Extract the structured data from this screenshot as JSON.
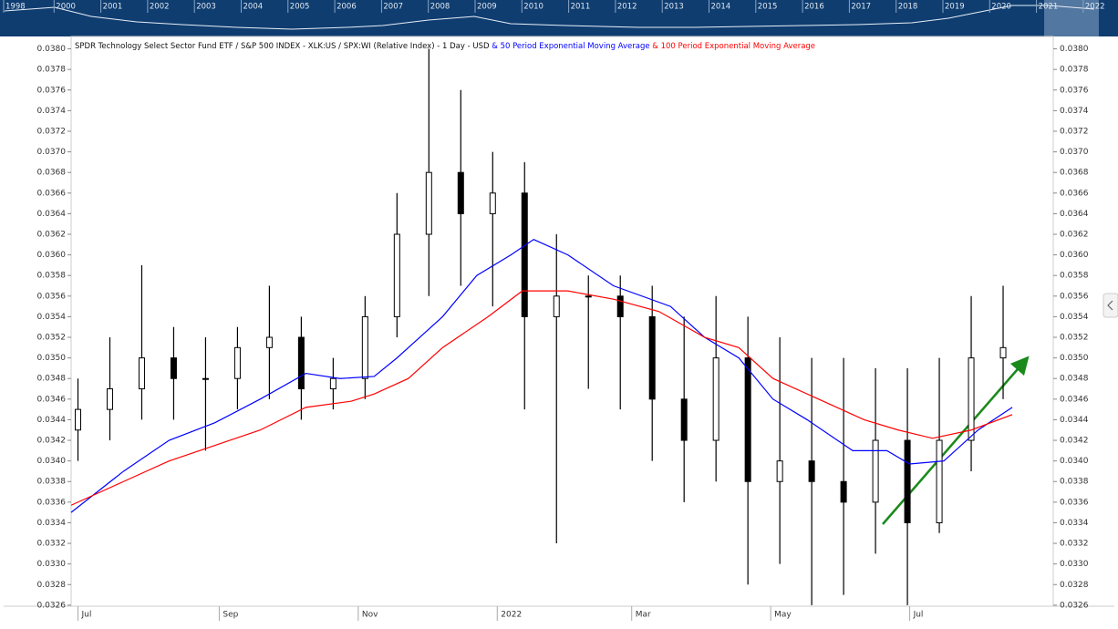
{
  "navigator": {
    "years": [
      "1998",
      "2000",
      "2001",
      "2002",
      "2003",
      "2004",
      "2005",
      "2006",
      "2007",
      "2008",
      "2009",
      "2010",
      "2011",
      "2012",
      "2013",
      "2014",
      "2015",
      "2016",
      "2017",
      "2018",
      "2019",
      "2020",
      "2021",
      "2022"
    ]
  },
  "chart_data": {
    "type": "candlestick",
    "title": "SPDR Technology Select Sector Fund ETF / S&P 500 INDEX - XLK:US / SPX:WI (Relative Index) - 1 Day - USD",
    "x": [
      0,
      14,
      28,
      42,
      56,
      70,
      84,
      98,
      112,
      126,
      140,
      154,
      168,
      182,
      196,
      210,
      224,
      238,
      252,
      266,
      280,
      294,
      308,
      322,
      336,
      350,
      364,
      378,
      392,
      406
    ],
    "open": [
      0.0343,
      0.0345,
      0.0347,
      0.035,
      0.0348,
      0.0348,
      0.0351,
      0.0352,
      0.0347,
      0.0348,
      0.0354,
      0.0362,
      0.0368,
      0.0364,
      0.0366,
      0.0354,
      0.0356,
      0.0356,
      0.0354,
      0.0346,
      0.0342,
      0.035,
      0.0338,
      0.034,
      0.0338,
      0.0336,
      0.0342,
      0.0334,
      0.0342,
      0.035
    ],
    "high": [
      0.0348,
      0.0352,
      0.0359,
      0.0353,
      0.0352,
      0.0353,
      0.0357,
      0.0354,
      0.035,
      0.0356,
      0.0366,
      0.038,
      0.0376,
      0.037,
      0.0369,
      0.0362,
      0.0358,
      0.0358,
      0.0357,
      0.0354,
      0.0356,
      0.0354,
      0.0352,
      0.035,
      0.035,
      0.0349,
      0.0349,
      0.035,
      0.0356,
      0.0357
    ],
    "low": [
      0.034,
      0.0342,
      0.0344,
      0.0344,
      0.0341,
      0.0345,
      0.0346,
      0.0344,
      0.0345,
      0.0346,
      0.0352,
      0.0356,
      0.0357,
      0.0355,
      0.0345,
      0.0332,
      0.0347,
      0.0345,
      0.034,
      0.0336,
      0.0338,
      0.0328,
      0.033,
      0.0326,
      0.0327,
      0.0331,
      0.0326,
      0.0333,
      0.0339,
      0.0346
    ],
    "close": [
      0.0345,
      0.0347,
      0.035,
      0.0348,
      0.0348,
      0.0351,
      0.0352,
      0.0347,
      0.0348,
      0.0354,
      0.0362,
      0.0368,
      0.0364,
      0.0366,
      0.0354,
      0.0356,
      0.0356,
      0.0354,
      0.0346,
      0.0342,
      0.035,
      0.0338,
      0.034,
      0.0338,
      0.0336,
      0.0342,
      0.0334,
      0.0342,
      0.035,
      0.0351
    ],
    "lines": [
      {
        "name": "& 50 Period Exponential Moving Average",
        "color": "#0000ff",
        "x": [
          -3,
          20,
          40,
          60,
          80,
          100,
          115,
          130,
          140,
          160,
          175,
          190,
          200,
          215,
          235,
          260,
          275,
          290,
          305,
          320,
          340,
          355,
          365,
          380,
          395,
          410
        ],
        "values": [
          0.0335,
          0.0339,
          0.0342,
          0.03437,
          0.0346,
          0.03485,
          0.0348,
          0.03482,
          0.035,
          0.0354,
          0.0358,
          0.036,
          0.03615,
          0.036,
          0.0357,
          0.0355,
          0.0352,
          0.035,
          0.0346,
          0.0344,
          0.0341,
          0.0341,
          0.03397,
          0.034,
          0.0343,
          0.03452
        ]
      },
      {
        "name": "& 100 Period Exponential Moving Average",
        "color": "#ff0000",
        "x": [
          -3,
          20,
          40,
          60,
          80,
          100,
          120,
          130,
          145,
          160,
          180,
          195,
          215,
          235,
          255,
          275,
          290,
          305,
          325,
          345,
          360,
          375,
          392,
          410
        ],
        "values": [
          0.03357,
          0.0338,
          0.034,
          0.03415,
          0.0343,
          0.03452,
          0.03458,
          0.03465,
          0.0348,
          0.0351,
          0.0354,
          0.03565,
          0.03565,
          0.03557,
          0.03545,
          0.0352,
          0.0351,
          0.0348,
          0.0346,
          0.0344,
          0.0343,
          0.03422,
          0.0343,
          0.03445
        ]
      }
    ],
    "xlim": [
      -3,
      428
    ],
    "xticks": [
      {
        "value": 0,
        "label": "Jul"
      },
      {
        "value": 62,
        "label": "Sep"
      },
      {
        "value": 123,
        "label": "Nov"
      },
      {
        "value": 184,
        "label": "2022"
      },
      {
        "value": 243,
        "label": "Mar"
      },
      {
        "value": 304,
        "label": "May"
      },
      {
        "value": 365,
        "label": "Jul"
      }
    ],
    "ylim": [
      0.03259,
      0.03812
    ],
    "yticks": [
      {
        "value": 0.0326,
        "label": "0.0326"
      },
      {
        "value": 0.0328,
        "label": "0.0328"
      },
      {
        "value": 0.033,
        "label": "0.0330"
      },
      {
        "value": 0.0332,
        "label": "0.0332"
      },
      {
        "value": 0.0334,
        "label": "0.0334"
      },
      {
        "value": 0.0336,
        "label": "0.0336"
      },
      {
        "value": 0.0338,
        "label": "0.0338"
      },
      {
        "value": 0.034,
        "label": "0.0340"
      },
      {
        "value": 0.0342,
        "label": "0.0342"
      },
      {
        "value": 0.0344,
        "label": "0.0344"
      },
      {
        "value": 0.0346,
        "label": "0.0346"
      },
      {
        "value": 0.0348,
        "label": "0.0348"
      },
      {
        "value": 0.035,
        "label": "0.0350"
      },
      {
        "value": 0.0352,
        "label": "0.0352"
      },
      {
        "value": 0.0354,
        "label": "0.0354"
      },
      {
        "value": 0.0356,
        "label": "0.0356"
      },
      {
        "value": 0.0358,
        "label": "0.0358"
      },
      {
        "value": 0.036,
        "label": "0.0360"
      },
      {
        "value": 0.0362,
        "label": "0.0362"
      },
      {
        "value": 0.0364,
        "label": "0.0364"
      },
      {
        "value": 0.0366,
        "label": "0.0366"
      },
      {
        "value": 0.0368,
        "label": "0.0368"
      },
      {
        "value": 0.037,
        "label": "0.0370"
      },
      {
        "value": 0.0372,
        "label": "0.0372"
      },
      {
        "value": 0.0374,
        "label": "0.0374"
      },
      {
        "value": 0.0376,
        "label": "0.0376"
      },
      {
        "value": 0.0378,
        "label": "0.0378"
      },
      {
        "value": 0.038,
        "label": "0.0380"
      }
    ]
  }
}
